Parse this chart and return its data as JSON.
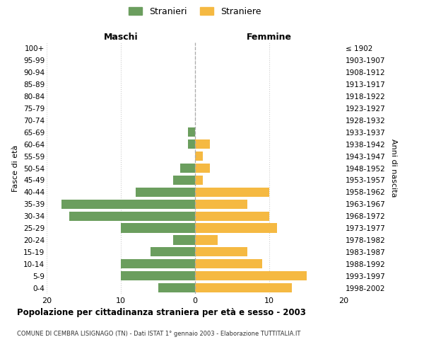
{
  "age_groups": [
    "0-4",
    "5-9",
    "10-14",
    "15-19",
    "20-24",
    "25-29",
    "30-34",
    "35-39",
    "40-44",
    "45-49",
    "50-54",
    "55-59",
    "60-64",
    "65-69",
    "70-74",
    "75-79",
    "80-84",
    "85-89",
    "90-94",
    "95-99",
    "100+"
  ],
  "birth_years": [
    "1998-2002",
    "1993-1997",
    "1988-1992",
    "1983-1987",
    "1978-1982",
    "1973-1977",
    "1968-1972",
    "1963-1967",
    "1958-1962",
    "1953-1957",
    "1948-1952",
    "1943-1947",
    "1938-1942",
    "1933-1937",
    "1928-1932",
    "1923-1927",
    "1918-1922",
    "1913-1917",
    "1908-1912",
    "1903-1907",
    "≤ 1902"
  ],
  "maschi": [
    5,
    10,
    10,
    6,
    3,
    10,
    17,
    18,
    8,
    3,
    2,
    0,
    1,
    1,
    0,
    0,
    0,
    0,
    0,
    0,
    0
  ],
  "femmine": [
    13,
    15,
    9,
    7,
    3,
    11,
    10,
    7,
    10,
    1,
    2,
    1,
    2,
    0,
    0,
    0,
    0,
    0,
    0,
    0,
    0
  ],
  "color_maschi": "#6b9e5e",
  "color_femmine": "#f5b942",
  "title": "Popolazione per cittadinanza straniera per età e sesso - 2003",
  "subtitle": "COMUNE DI CEMBRA LISIGNAGO (TN) - Dati ISTAT 1° gennaio 2003 - Elaborazione TUTTITALIA.IT",
  "ylabel_left": "Fasce di età",
  "ylabel_right": "Anni di nascita",
  "xlabel_left": "Maschi",
  "xlabel_right": "Femmine",
  "legend_maschi": "Stranieri",
  "legend_femmine": "Straniere",
  "xlim": 20,
  "background_color": "#ffffff",
  "grid_color": "#cccccc"
}
